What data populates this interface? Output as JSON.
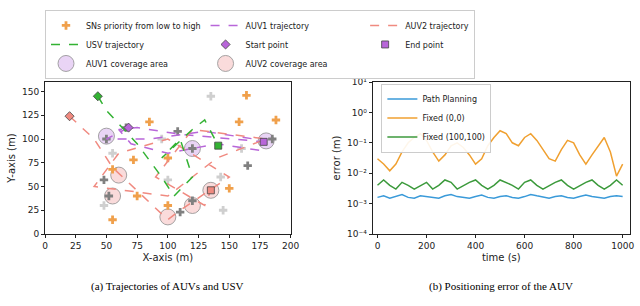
{
  "chart_data": [
    {
      "type": "scatter",
      "title": "(a) Trajectories of AUVs and USV",
      "xlabel": "X-axis (m)",
      "ylabel": "Y-axis (m)",
      "xlim": [
        0,
        200
      ],
      "xticks": [
        0,
        25,
        50,
        75,
        100,
        125,
        150,
        175,
        200
      ],
      "ylim": [
        0,
        160
      ],
      "yticks": [
        0,
        25,
        50,
        75,
        100,
        125,
        150
      ],
      "grid": false,
      "legend": "top",
      "series": [
        {
          "name": "SNs priority from low to high",
          "marker": "cross",
          "line_style": "none",
          "x": [
            164,
            135,
            85,
            158,
            188,
            66,
            50,
            55,
            100,
            120,
            160,
            185,
            55,
            48,
            100,
            75,
            52,
            48,
            100,
            120,
            55,
            110,
            145,
            150,
            165,
            95,
            72,
            108,
            143
          ],
          "y": [
            146,
            145,
            118,
            118,
            120,
            112,
            100,
            85,
            80,
            90,
            90,
            100,
            68,
            57,
            57,
            40,
            40,
            30,
            30,
            35,
            15,
            23,
            25,
            48,
            72,
            100,
            78,
            108,
            60
          ],
          "colors": [
            "#f0a04b",
            "#cfcfcf",
            "#f0a04b",
            "#f0a04b",
            "#f0a04b",
            "#808080",
            "#808080",
            "#cfcfcf",
            "#f0a04b",
            "#808080",
            "#cfcfcf",
            "#808080",
            "#f0a04b",
            "#808080",
            "#cfcfcf",
            "#f0a04b",
            "#808080",
            "#cfcfcf",
            "#f0a04b",
            "#808080",
            "#f0a04b",
            "#808080",
            "#cfcfcf",
            "#f0a04b",
            "#808080",
            "#cfcfcf",
            "#f0a04b",
            "#808080",
            "#cfcfcf"
          ]
        },
        {
          "name": "AUV1 trajectory",
          "color": "#b866d9",
          "marker": "none",
          "line_style": "dashed",
          "x": [
            68,
            50,
            85,
            130,
            170,
            180,
            175,
            140,
            100,
            70,
            60,
            75,
            110,
            150,
            178
          ],
          "y": [
            112,
            100,
            100,
            108,
            100,
            98,
            88,
            95,
            85,
            95,
            110,
            112,
            105,
            100,
            97
          ]
        },
        {
          "name": "AUV2 trajectory",
          "color": "#f08a80",
          "marker": "none",
          "line_style": "dashed",
          "x": [
            20,
            40,
            55,
            80,
            100,
            110,
            150,
            100,
            60,
            40,
            100,
            140,
            180,
            120,
            90,
            130,
            135
          ],
          "y": [
            124,
            100,
            70,
            40,
            15,
            25,
            60,
            100,
            85,
            50,
            40,
            80,
            100,
            110,
            60,
            30,
            46
          ]
        },
        {
          "name": "USV trajectory",
          "color": "#33b233",
          "marker": "none",
          "line_style": "dashed",
          "x": [
            43,
            50,
            75,
            95,
            105,
            120,
            110,
            95,
            120,
            130,
            141
          ],
          "y": [
            145,
            130,
            95,
            60,
            40,
            60,
            100,
            80,
            110,
            120,
            93
          ]
        },
        {
          "name": "Start point",
          "marker": "diamond",
          "line_style": "none",
          "x": [
            68,
            20,
            43
          ],
          "y": [
            112,
            124,
            145
          ],
          "colors": [
            "#b866d9",
            "#f08a80",
            "#33b233"
          ]
        },
        {
          "name": "End point",
          "marker": "square",
          "line_style": "none",
          "x": [
            178,
            135,
            141
          ],
          "y": [
            97,
            46,
            93
          ],
          "colors": [
            "#b866d9",
            "#f08a80",
            "#33b233"
          ]
        },
        {
          "name": "AUV1 coverage area",
          "color": "#dcb8f0",
          "marker": "circle",
          "line_style": "none",
          "x": [
            50,
            180,
            120
          ],
          "y": [
            103,
            98,
            90
          ]
        },
        {
          "name": "AUV2 coverage area",
          "color": "#f7c4c4",
          "marker": "circle",
          "line_style": "none",
          "x": [
            100,
            120,
            60,
            135,
            55
          ],
          "y": [
            18,
            30,
            62,
            46,
            40
          ]
        }
      ]
    },
    {
      "type": "line",
      "title": "(b) Positioning error of the AUV",
      "xlabel": "time (s)",
      "ylabel": "error (m)",
      "log": "y",
      "grid": false,
      "legend": "upper left",
      "xlim": [
        -20,
        1030
      ],
      "xticks": [
        0,
        200,
        400,
        600,
        800,
        1000
      ],
      "ylim": [
        0.0001,
        10
      ],
      "yticks": [
        {
          "value": 0.0001,
          "label": "10⁻⁴"
        },
        {
          "value": 0.001,
          "label": "10⁻³"
        },
        {
          "value": 0.01,
          "label": "10⁻²"
        },
        {
          "value": 0.1,
          "label": "10⁻¹"
        },
        {
          "value": 1,
          "label": "10⁰"
        },
        {
          "value": 10,
          "label": "10¹"
        }
      ],
      "x": [
        0,
        25,
        50,
        75,
        100,
        125,
        150,
        175,
        200,
        225,
        250,
        275,
        300,
        325,
        350,
        375,
        400,
        425,
        450,
        475,
        500,
        525,
        550,
        575,
        600,
        625,
        650,
        675,
        700,
        725,
        750,
        775,
        800,
        825,
        850,
        875,
        900,
        925,
        950,
        975,
        1000
      ],
      "series": [
        {
          "name": "Path Planning",
          "color": "#3a9ad9",
          "marker": "none",
          "line_style": "solid",
          "values": [
            0.0016,
            0.0018,
            0.0015,
            0.0017,
            0.002,
            0.0016,
            0.0015,
            0.0018,
            0.0017,
            0.0016,
            0.0015,
            0.0018,
            0.002,
            0.0017,
            0.0016,
            0.0015,
            0.0017,
            0.0019,
            0.0016,
            0.0015,
            0.0017,
            0.0018,
            0.0016,
            0.0015,
            0.0017,
            0.002,
            0.0018,
            0.0016,
            0.0015,
            0.0017,
            0.0018,
            0.0016,
            0.0015,
            0.0017,
            0.0019,
            0.0017,
            0.0016,
            0.0015,
            0.0017,
            0.0018,
            0.0017
          ]
        },
        {
          "name": "Fixed (0,0)",
          "color": "#f0a030",
          "marker": "none",
          "line_style": "solid",
          "values": [
            0.03,
            0.02,
            0.012,
            0.02,
            0.05,
            0.1,
            0.15,
            0.2,
            0.12,
            0.05,
            0.025,
            0.04,
            0.08,
            0.1,
            0.07,
            0.04,
            0.02,
            0.03,
            0.08,
            0.15,
            0.25,
            0.2,
            0.1,
            0.08,
            0.15,
            0.2,
            0.12,
            0.06,
            0.03,
            0.025,
            0.06,
            0.12,
            0.1,
            0.04,
            0.02,
            0.04,
            0.08,
            0.15,
            0.05,
            0.008,
            0.02
          ]
        },
        {
          "name": "Fixed (100,100)",
          "color": "#3c9a3c",
          "marker": "none",
          "line_style": "solid",
          "values": [
            0.004,
            0.006,
            0.004,
            0.003,
            0.005,
            0.004,
            0.003,
            0.004,
            0.005,
            0.003,
            0.004,
            0.006,
            0.005,
            0.003,
            0.004,
            0.005,
            0.006,
            0.004,
            0.003,
            0.004,
            0.006,
            0.005,
            0.004,
            0.003,
            0.005,
            0.006,
            0.004,
            0.003,
            0.004,
            0.005,
            0.006,
            0.004,
            0.003,
            0.004,
            0.005,
            0.006,
            0.004,
            0.003,
            0.004,
            0.006,
            0.004
          ]
        }
      ]
    }
  ]
}
